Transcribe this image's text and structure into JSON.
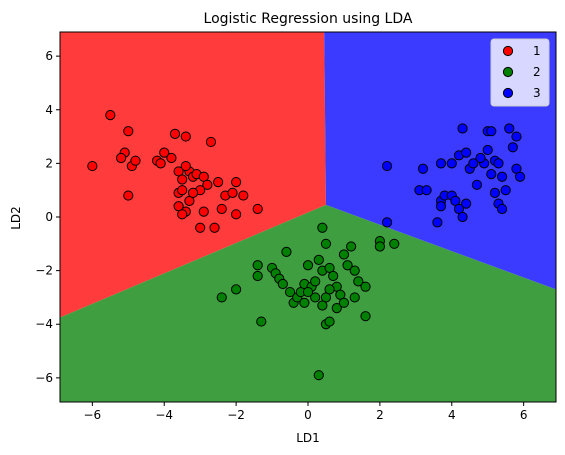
{
  "chart_data": {
    "type": "scatter",
    "title": "Logistic Regression using LDA",
    "xlabel": "LD1",
    "ylabel": "LD2",
    "xlim": [
      -6.9,
      6.9
    ],
    "ylim": [
      -6.9,
      6.9
    ],
    "xticks": [
      -6,
      -4,
      -2,
      0,
      2,
      4,
      6
    ],
    "yticks": [
      -6,
      -4,
      -2,
      0,
      2,
      4,
      6
    ],
    "tick_labels": {
      "x": [
        "−6",
        "−4",
        "−2",
        "0",
        "2",
        "4",
        "6"
      ],
      "y": [
        "−6",
        "−4",
        "−2",
        "0",
        "2",
        "4",
        "6"
      ]
    },
    "grid": false,
    "legend": "top-right",
    "decision_regions": [
      {
        "class": "1",
        "color": "#ff3b3b",
        "polygon": [
          [
            -6.9,
            -3.75
          ],
          [
            0.5,
            0.45
          ],
          [
            0.45,
            6.9
          ],
          [
            -6.9,
            6.9
          ]
        ]
      },
      {
        "class": "2",
        "color": "#3f9e3f",
        "polygon": [
          [
            -6.9,
            -3.75
          ],
          [
            0.5,
            0.45
          ],
          [
            6.9,
            -2.7
          ],
          [
            6.9,
            -6.9
          ],
          [
            -6.9,
            -6.9
          ]
        ]
      },
      {
        "class": "3",
        "color": "#3b3bff",
        "polygon": [
          [
            0.5,
            0.45
          ],
          [
            0.45,
            6.9
          ],
          [
            6.9,
            6.9
          ],
          [
            6.9,
            -2.7
          ]
        ]
      }
    ],
    "series": [
      {
        "name": "1",
        "color": "#ff0000",
        "points": [
          [
            -6.0,
            1.9
          ],
          [
            -5.5,
            3.8
          ],
          [
            -5.1,
            2.4
          ],
          [
            -5.2,
            2.2
          ],
          [
            -5.0,
            3.2
          ],
          [
            -4.9,
            1.9
          ],
          [
            -4.8,
            2.1
          ],
          [
            -5.0,
            0.8
          ],
          [
            -4.2,
            2.1
          ],
          [
            -4.0,
            2.4
          ],
          [
            -4.1,
            2.0
          ],
          [
            -3.8,
            2.2
          ],
          [
            -3.7,
            3.1
          ],
          [
            -3.4,
            3.0
          ],
          [
            -3.6,
            1.7
          ],
          [
            -3.5,
            1.4
          ],
          [
            -3.6,
            0.9
          ],
          [
            -3.5,
            1.0
          ],
          [
            -3.3,
            1.7
          ],
          [
            -3.2,
            1.5
          ],
          [
            -3.4,
            1.9
          ],
          [
            -3.1,
            1.6
          ],
          [
            -2.9,
            1.5
          ],
          [
            -2.8,
            1.2
          ],
          [
            -3.0,
            1.0
          ],
          [
            -2.7,
            2.8
          ],
          [
            -2.5,
            1.3
          ],
          [
            -2.3,
            0.8
          ],
          [
            -2.0,
            1.3
          ],
          [
            -1.8,
            0.8
          ],
          [
            -3.6,
            0.4
          ],
          [
            -3.4,
            0.2
          ],
          [
            -3.3,
            0.6
          ],
          [
            -2.9,
            0.2
          ],
          [
            -2.4,
            0.3
          ],
          [
            -2.0,
            0.1
          ],
          [
            -1.4,
            0.3
          ],
          [
            -3.0,
            -0.4
          ],
          [
            -2.6,
            -0.4
          ],
          [
            -3.5,
            0.1
          ],
          [
            -3.2,
            0.9
          ],
          [
            -2.1,
            0.9
          ]
        ]
      },
      {
        "name": "2",
        "color": "#008000",
        "points": [
          [
            -2.4,
            -3.0
          ],
          [
            -2.0,
            -2.7
          ],
          [
            -1.4,
            -1.8
          ],
          [
            -1.4,
            -2.2
          ],
          [
            -1.3,
            -3.9
          ],
          [
            -1.0,
            -1.9
          ],
          [
            -0.9,
            -2.1
          ],
          [
            -0.8,
            -2.3
          ],
          [
            -0.7,
            -2.5
          ],
          [
            -0.6,
            -1.3
          ],
          [
            -0.4,
            -3.2
          ],
          [
            -0.3,
            -3.0
          ],
          [
            -0.2,
            -2.8
          ],
          [
            -0.1,
            -2.5
          ],
          [
            0.0,
            -1.8
          ],
          [
            0.1,
            -2.6
          ],
          [
            0.2,
            -2.4
          ],
          [
            0.3,
            -1.6
          ],
          [
            0.4,
            -2.0
          ],
          [
            0.5,
            -1.0
          ],
          [
            0.5,
            -3.0
          ],
          [
            0.6,
            -1.9
          ],
          [
            0.7,
            -2.2
          ],
          [
            0.8,
            -2.6
          ],
          [
            0.9,
            -2.9
          ],
          [
            1.0,
            -1.4
          ],
          [
            1.1,
            -1.8
          ],
          [
            1.2,
            -1.1
          ],
          [
            1.3,
            -2.0
          ],
          [
            1.4,
            -2.4
          ],
          [
            1.6,
            -2.6
          ],
          [
            2.0,
            -0.9
          ],
          [
            2.0,
            -1.1
          ],
          [
            2.4,
            -1.0
          ],
          [
            0.4,
            -0.4
          ],
          [
            0.3,
            -5.9
          ],
          [
            0.5,
            -4.0
          ],
          [
            0.6,
            -3.9
          ],
          [
            0.8,
            -3.4
          ],
          [
            1.0,
            -3.2
          ],
          [
            1.3,
            -3.0
          ],
          [
            1.6,
            -3.7
          ],
          [
            0.2,
            -3.0
          ],
          [
            -0.1,
            -3.2
          ],
          [
            0.0,
            -2.8
          ],
          [
            0.4,
            -3.3
          ],
          [
            -0.5,
            -2.8
          ],
          [
            0.6,
            -2.7
          ]
        ]
      },
      {
        "name": "3",
        "color": "#0000ff",
        "points": [
          [
            2.2,
            1.9
          ],
          [
            2.2,
            -0.2
          ],
          [
            3.1,
            1.0
          ],
          [
            3.2,
            1.8
          ],
          [
            3.3,
            1.0
          ],
          [
            3.7,
            2.0
          ],
          [
            3.7,
            0.6
          ],
          [
            3.7,
            0.4
          ],
          [
            3.8,
            0.8
          ],
          [
            3.6,
            -0.2
          ],
          [
            4.0,
            2.0
          ],
          [
            4.0,
            0.8
          ],
          [
            4.1,
            0.6
          ],
          [
            4.2,
            0.3
          ],
          [
            4.2,
            2.3
          ],
          [
            4.3,
            3.3
          ],
          [
            4.4,
            2.4
          ],
          [
            4.4,
            0.5
          ],
          [
            4.5,
            1.8
          ],
          [
            4.6,
            2.0
          ],
          [
            4.7,
            1.2
          ],
          [
            4.9,
            2.0
          ],
          [
            5.0,
            2.5
          ],
          [
            5.0,
            3.2
          ],
          [
            5.1,
            1.6
          ],
          [
            5.2,
            2.1
          ],
          [
            5.2,
            0.9
          ],
          [
            5.3,
            2.0
          ],
          [
            5.4,
            1.5
          ],
          [
            5.3,
            0.5
          ],
          [
            5.4,
            0.3
          ],
          [
            5.6,
            3.3
          ],
          [
            5.7,
            2.6
          ],
          [
            5.8,
            3.0
          ],
          [
            5.8,
            1.8
          ],
          [
            5.9,
            1.5
          ],
          [
            4.8,
            2.2
          ],
          [
            5.1,
            3.2
          ],
          [
            4.3,
            0.0
          ],
          [
            5.5,
            1.0
          ]
        ]
      }
    ]
  }
}
